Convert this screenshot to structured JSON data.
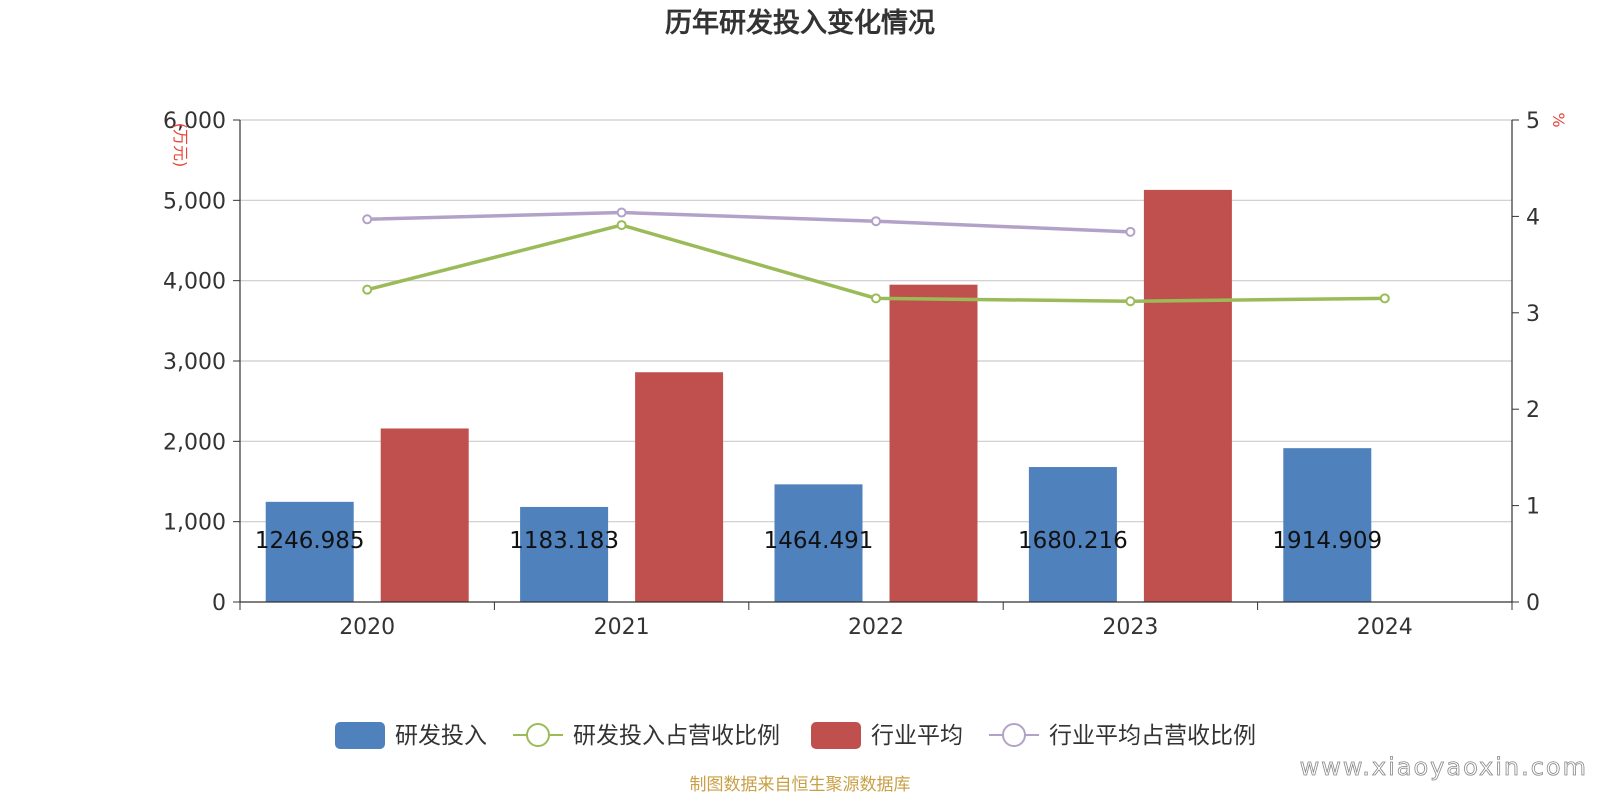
{
  "chart_data": {
    "type": "bar",
    "title": "历年研发投入变化情况",
    "categories": [
      "2020",
      "2021",
      "2022",
      "2023",
      "2024"
    ],
    "y_left": {
      "unit_label": "(万元)",
      "range": [
        0,
        6000
      ],
      "ticks": [
        "0",
        "1,000",
        "2,000",
        "3,000",
        "4,000",
        "5,000",
        "6,000"
      ],
      "tick_values": [
        0,
        1000,
        2000,
        3000,
        4000,
        5000,
        6000
      ]
    },
    "y_right": {
      "unit_label": "%",
      "range": [
        0,
        5
      ],
      "ticks": [
        "0",
        "1",
        "2",
        "3",
        "4",
        "5"
      ],
      "tick_values": [
        0,
        1,
        2,
        3,
        4,
        5
      ]
    },
    "grid": true,
    "legend_position": "bottom",
    "series": [
      {
        "name": "研发投入",
        "kind": "bar",
        "axis": "left",
        "color": "#4f81bd",
        "values": [
          1246.985,
          1183.183,
          1464.491,
          1680.216,
          1914.909
        ],
        "labels": [
          "1246.985",
          "1183.183",
          "1464.491",
          "1680.216",
          "1914.909"
        ]
      },
      {
        "name": "研发投入占营收比例",
        "kind": "line",
        "axis": "right",
        "color": "#9bbb59",
        "values": [
          3.24,
          3.91,
          3.15,
          3.12,
          3.15
        ]
      },
      {
        "name": "行业平均",
        "kind": "bar",
        "axis": "left",
        "color": "#c0504d",
        "values": [
          2160,
          2860,
          3950,
          5130,
          null
        ]
      },
      {
        "name": "行业平均占营收比例",
        "kind": "line",
        "axis": "right",
        "color": "#b3a2c7",
        "values": [
          3.97,
          4.04,
          3.95,
          3.84,
          null
        ]
      }
    ],
    "source_note": "制图数据来自恒生聚源数据库",
    "watermark": "www.xiaoyaoxin.com"
  }
}
